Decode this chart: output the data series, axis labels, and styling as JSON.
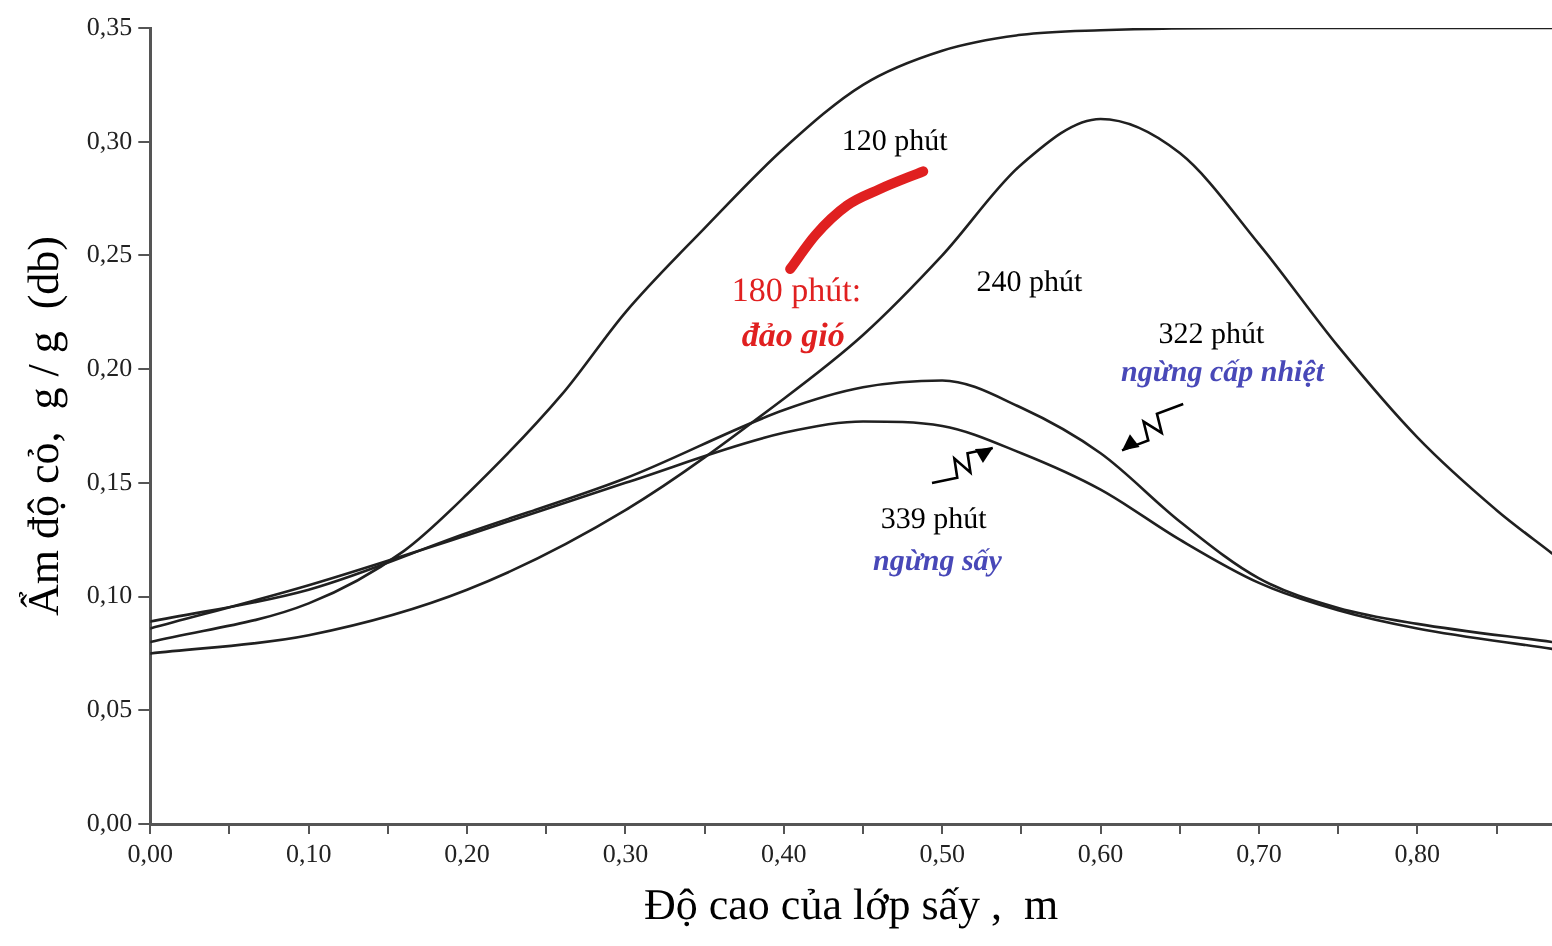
{
  "chart_data": {
    "type": "line",
    "xlabel": "Độ cao của lớp sấy ,  m",
    "ylabel": "Ẩm độ cỏ,  g / g  (db)",
    "xlim": [
      0,
      0.885
    ],
    "ylim": [
      0,
      0.35
    ],
    "xticks": [
      {
        "value": 0,
        "label": "0,00"
      },
      {
        "value": 0.05,
        "label": null
      },
      {
        "value": 0.1,
        "label": "0,10"
      },
      {
        "value": 0.15,
        "label": null
      },
      {
        "value": 0.2,
        "label": "0,20"
      },
      {
        "value": 0.25,
        "label": null
      },
      {
        "value": 0.3,
        "label": "0,30"
      },
      {
        "value": 0.35,
        "label": null
      },
      {
        "value": 0.4,
        "label": "0,40"
      },
      {
        "value": 0.45,
        "label": null
      },
      {
        "value": 0.5,
        "label": "0,50"
      },
      {
        "value": 0.55,
        "label": null
      },
      {
        "value": 0.6,
        "label": "0,60"
      },
      {
        "value": 0.65,
        "label": null
      },
      {
        "value": 0.7,
        "label": "0,70"
      },
      {
        "value": 0.75,
        "label": null
      },
      {
        "value": 0.8,
        "label": "0,80"
      },
      {
        "value": 0.85,
        "label": null
      }
    ],
    "yticks": [
      {
        "value": 0,
        "label": "0,00"
      },
      {
        "value": 0.05,
        "label": "0,05"
      },
      {
        "value": 0.1,
        "label": "0,10"
      },
      {
        "value": 0.15,
        "label": "0,15"
      },
      {
        "value": 0.2,
        "label": "0,20"
      },
      {
        "value": 0.25,
        "label": "0,25"
      },
      {
        "value": 0.3,
        "label": "0,30"
      },
      {
        "value": 0.35,
        "label": "0,35"
      }
    ],
    "grid": false,
    "legend": false,
    "marker": "none",
    "line_style": "solid",
    "series": [
      {
        "name": "120 phút",
        "color": "#202020",
        "x": [
          0,
          0.1,
          0.16,
          0.2,
          0.26,
          0.3,
          0.35,
          0.4,
          0.45,
          0.5,
          0.55,
          0.6,
          0.7,
          0.885
        ],
        "values": [
          0.08,
          0.097,
          0.12,
          0.145,
          0.189,
          0.225,
          0.262,
          0.297,
          0.325,
          0.34,
          0.347,
          0.349,
          0.35,
          0.35
        ]
      },
      {
        "name": "180 phút:",
        "color": "#e02020",
        "x": [
          0.404,
          0.42,
          0.44,
          0.46,
          0.488
        ],
        "values": [
          0.244,
          0.259,
          0.272,
          0.279,
          0.287
        ]
      },
      {
        "name": "240 phút",
        "color": "#202020",
        "x": [
          0,
          0.1,
          0.2,
          0.3,
          0.4,
          0.45,
          0.5,
          0.55,
          0.6,
          0.65,
          0.7,
          0.75,
          0.8,
          0.85,
          0.885
        ],
        "values": [
          0.075,
          0.083,
          0.103,
          0.138,
          0.187,
          0.215,
          0.25,
          0.29,
          0.31,
          0.295,
          0.255,
          0.21,
          0.17,
          0.138,
          0.119
        ]
      },
      {
        "color": "#202020",
        "x": [
          0,
          0.1,
          0.2,
          0.3,
          0.4,
          0.45,
          0.5,
          0.55,
          0.6,
          0.65,
          0.7,
          0.75,
          0.8,
          0.885
        ],
        "values": [
          0.089,
          0.103,
          0.128,
          0.152,
          0.182,
          0.192,
          0.195,
          0.183,
          0.163,
          0.133,
          0.108,
          0.095,
          0.088,
          0.08
        ]
      },
      {
        "color": "#202020",
        "x": [
          0,
          0.1,
          0.2,
          0.3,
          0.4,
          0.45,
          0.5,
          0.55,
          0.6,
          0.65,
          0.7,
          0.75,
          0.8,
          0.885
        ],
        "values": [
          0.086,
          0.105,
          0.127,
          0.15,
          0.172,
          0.177,
          0.175,
          0.163,
          0.147,
          0.125,
          0.106,
          0.094,
          0.086,
          0.077
        ]
      }
    ],
    "annotations": [
      "đảo gió",
      "322 phút",
      "ngừng cấp nhiệt",
      {
        "text": "339 phút",
        "x": 0.535,
        "y": 0.167
      },
      "ngừng sấy"
    ]
  }
}
